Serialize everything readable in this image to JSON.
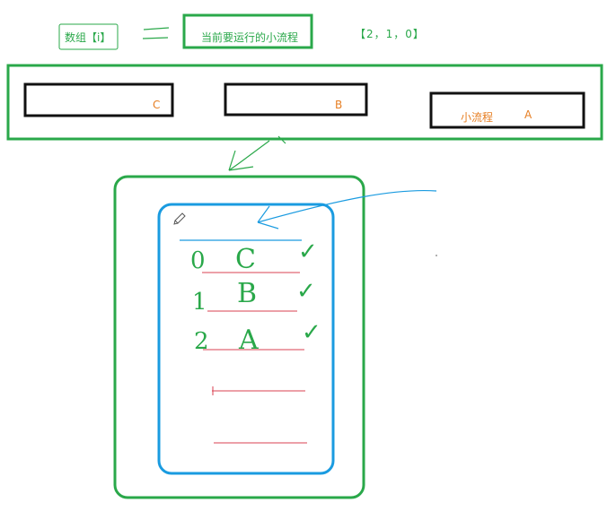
{
  "header": {
    "array_label": "数组【i】",
    "current_label": "当前要运行的小流程",
    "array_values": "【2，1，0】"
  },
  "flow_row": {
    "box_c": "C",
    "box_b": "B",
    "box_a_name": "小流程",
    "box_a": "A"
  },
  "sketch": {
    "rows": [
      {
        "index": "0",
        "letter": "C",
        "mark": "✓"
      },
      {
        "index": "1",
        "letter": "B",
        "mark": "✓"
      },
      {
        "index": "2",
        "letter": "A",
        "mark": "✓"
      }
    ]
  },
  "colors": {
    "green": "#2aa84a",
    "black": "#111111",
    "blue": "#1a9be0",
    "red": "#d94050",
    "orange": "#e67e22"
  }
}
